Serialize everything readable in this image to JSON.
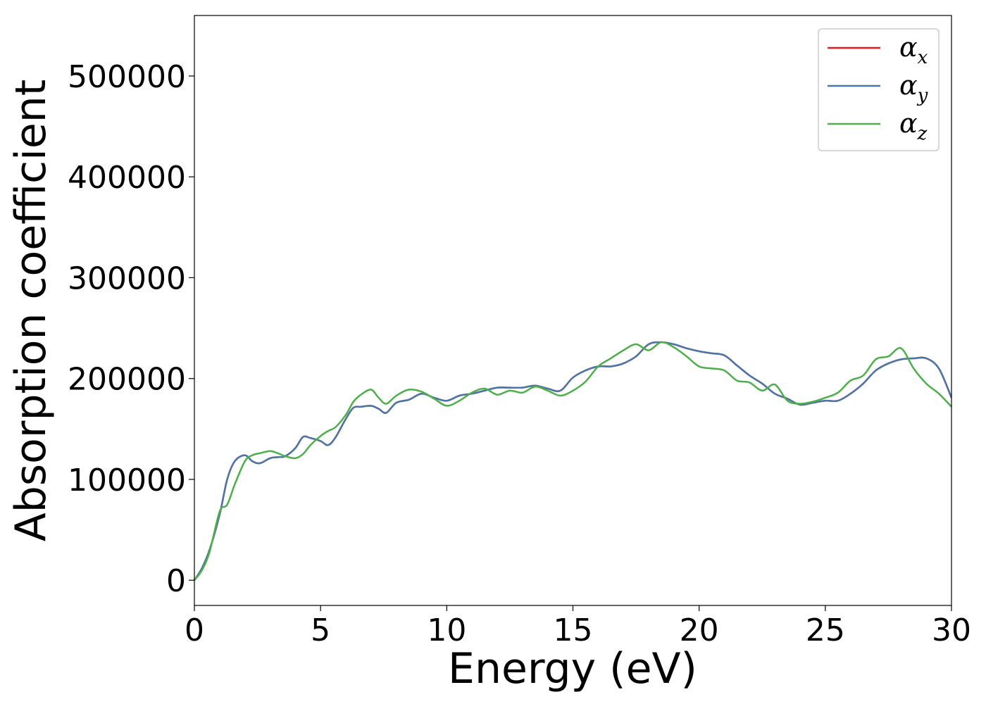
{
  "chart_data": {
    "type": "line",
    "title": "",
    "xlabel": "Energy (eV)",
    "ylabel": "Absorption coefficient",
    "xlim": [
      0,
      30
    ],
    "ylim": [
      -25000,
      560000
    ],
    "xticks": [
      0,
      5,
      10,
      15,
      20,
      25,
      30
    ],
    "xtick_labels": [
      "0",
      "5",
      "10",
      "15",
      "20",
      "25",
      "30"
    ],
    "yticks": [
      0,
      100000,
      200000,
      300000,
      400000,
      500000
    ],
    "ytick_labels": [
      "0",
      "100000",
      "200000",
      "300000",
      "400000",
      "500000"
    ],
    "grid": false,
    "legend": "top-right",
    "series": [
      {
        "name": "α",
        "subscript": "x",
        "color": "#e41a1c",
        "x": [
          0,
          0.3,
          0.6,
          1,
          1.3,
          1.6,
          2,
          2.3,
          2.6,
          3,
          3.3,
          3.6,
          4,
          4.3,
          4.6,
          5,
          5.3,
          5.6,
          6,
          6.3,
          6.6,
          7,
          7.3,
          7.6,
          8,
          8.5,
          9,
          9.5,
          10,
          10.5,
          11,
          11.5,
          12,
          12.5,
          13,
          13.5,
          14,
          14.5,
          15,
          15.5,
          16,
          16.5,
          17,
          17.5,
          18,
          18.5,
          19,
          19.5,
          20,
          20.5,
          21,
          21.5,
          22,
          22.5,
          23,
          23.5,
          24,
          24.5,
          25,
          25.5,
          26,
          26.5,
          27,
          27.5,
          28,
          28.5,
          29,
          29.5,
          30
        ],
        "y": [
          0,
          12000,
          30000,
          65000,
          100000,
          118000,
          124000,
          118000,
          116000,
          121000,
          122000,
          123000,
          131000,
          142000,
          141000,
          138000,
          134000,
          142000,
          160000,
          171000,
          172000,
          173000,
          170000,
          166000,
          176000,
          179000,
          185000,
          181000,
          178000,
          183000,
          185000,
          188000,
          191000,
          191000,
          191000,
          193000,
          190000,
          188000,
          201000,
          208000,
          212000,
          212000,
          215000,
          222000,
          234000,
          236000,
          234000,
          230000,
          227000,
          225000,
          223000,
          213000,
          203000,
          195000,
          185000,
          180000,
          174000,
          176000,
          178000,
          178000,
          185000,
          195000,
          208000,
          215000,
          219000,
          220000,
          220000,
          210000,
          181000
        ]
      },
      {
        "name": "α",
        "subscript": "y",
        "color": "#4a77aa",
        "x": [
          0,
          0.3,
          0.6,
          1,
          1.3,
          1.6,
          2,
          2.3,
          2.6,
          3,
          3.3,
          3.6,
          4,
          4.3,
          4.6,
          5,
          5.3,
          5.6,
          6,
          6.3,
          6.6,
          7,
          7.3,
          7.6,
          8,
          8.5,
          9,
          9.5,
          10,
          10.5,
          11,
          11.5,
          12,
          12.5,
          13,
          13.5,
          14,
          14.5,
          15,
          15.5,
          16,
          16.5,
          17,
          17.5,
          18,
          18.5,
          19,
          19.5,
          20,
          20.5,
          21,
          21.5,
          22,
          22.5,
          23,
          23.5,
          24,
          24.5,
          25,
          25.5,
          26,
          26.5,
          27,
          27.5,
          28,
          28.5,
          29,
          29.5,
          30
        ],
        "y": [
          0,
          12000,
          30000,
          65000,
          100000,
          118000,
          124000,
          118000,
          116000,
          121000,
          122000,
          123000,
          131000,
          142000,
          141000,
          138000,
          134000,
          142000,
          160000,
          171000,
          172000,
          173000,
          170000,
          166000,
          176000,
          179000,
          185000,
          181000,
          178000,
          183000,
          185000,
          188000,
          191000,
          191000,
          191000,
          193000,
          190000,
          188000,
          201000,
          208000,
          212000,
          212000,
          215000,
          222000,
          234000,
          236000,
          234000,
          230000,
          227000,
          225000,
          223000,
          213000,
          203000,
          195000,
          185000,
          180000,
          174000,
          176000,
          178000,
          178000,
          185000,
          195000,
          208000,
          215000,
          219000,
          220000,
          220000,
          210000,
          181000
        ]
      },
      {
        "name": "α",
        "subscript": "z",
        "color": "#4daf4a",
        "x": [
          0,
          0.3,
          0.6,
          1,
          1.3,
          1.6,
          2,
          2.3,
          2.6,
          3,
          3.3,
          3.6,
          4,
          4.3,
          4.6,
          5,
          5.3,
          5.6,
          6,
          6.3,
          6.6,
          7,
          7.3,
          7.6,
          8,
          8.5,
          9,
          9.5,
          10,
          10.5,
          11,
          11.5,
          12,
          12.5,
          13,
          13.5,
          14,
          14.5,
          15,
          15.5,
          16,
          16.5,
          17,
          17.5,
          18,
          18.5,
          19,
          19.5,
          20,
          20.5,
          21,
          21.5,
          22,
          22.5,
          23,
          23.5,
          24,
          24.5,
          25,
          25.5,
          26,
          26.5,
          27,
          27.5,
          28,
          28.5,
          29,
          29.5,
          30
        ],
        "y": [
          0,
          10000,
          28000,
          68000,
          75000,
          95000,
          118000,
          124000,
          126000,
          128000,
          126000,
          123000,
          121000,
          125000,
          134000,
          143000,
          148000,
          152000,
          164000,
          177000,
          184000,
          189000,
          181000,
          175000,
          183000,
          189000,
          187000,
          180000,
          173000,
          178000,
          186000,
          190000,
          184000,
          188000,
          186000,
          192000,
          188000,
          183000,
          188000,
          197000,
          212000,
          220000,
          228000,
          234000,
          228000,
          236000,
          231000,
          222000,
          212000,
          210000,
          208000,
          198000,
          196000,
          188000,
          194000,
          178000,
          175000,
          177000,
          181000,
          186000,
          198000,
          203000,
          219000,
          222000,
          230000,
          210000,
          195000,
          185000,
          172000
        ]
      }
    ]
  }
}
